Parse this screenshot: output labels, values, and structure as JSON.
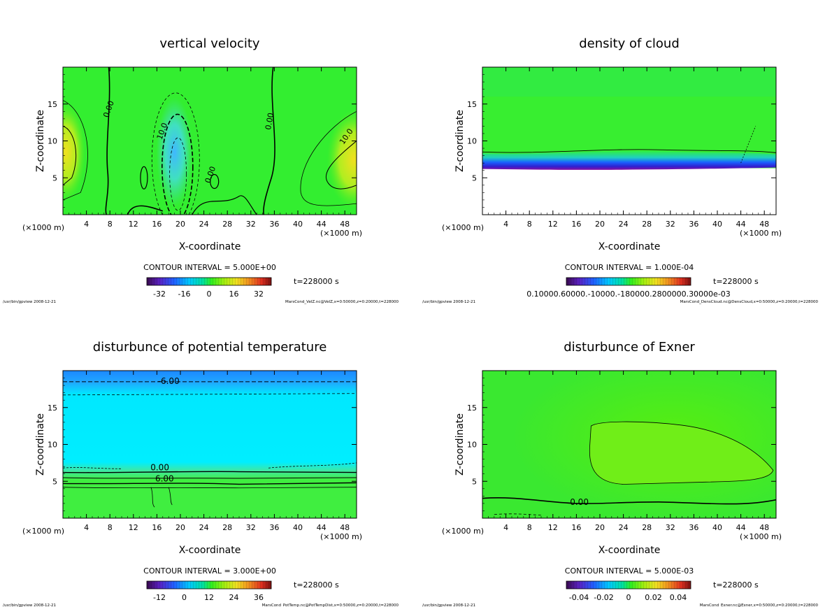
{
  "chart_data": [
    {
      "type": "heatmap",
      "title": "vertical velocity",
      "xlabel": "X-coordinate",
      "ylabel": "Z-coordinate",
      "x_unit": "(×1000 m)",
      "x_ticks": [
        4,
        8,
        12,
        16,
        20,
        24,
        28,
        32,
        36,
        40,
        44,
        48
      ],
      "y_ticks": [
        5,
        10,
        15
      ],
      "xlim": [
        0,
        50
      ],
      "ylim": [
        0,
        20
      ],
      "contour_interval": "CONTOUR INTERVAL = 5.000E+00",
      "time_label": "t=228000 s",
      "colorbar_ticks": [
        "-32",
        "-16",
        "0",
        "16",
        "32"
      ],
      "contour_labels": [
        "0.00",
        "10.0",
        "0.00",
        "0.00",
        "10.0"
      ],
      "footer_left": "/usr/bin/gpview  2008-12-21",
      "footer_right": "MarsCond_VelZ.nc@VelZ,x=0:50000,z=0:20000,t=228000",
      "grid": false
    },
    {
      "type": "heatmap",
      "title": "density of cloud",
      "xlabel": "X-coordinate",
      "ylabel": "Z-coordinate",
      "x_unit": "(×1000 m)",
      "x_ticks": [
        4,
        8,
        12,
        16,
        20,
        24,
        28,
        32,
        36,
        40,
        44,
        48
      ],
      "y_ticks": [
        5,
        10,
        15
      ],
      "xlim": [
        0,
        50
      ],
      "ylim": [
        0,
        20
      ],
      "contour_interval": "CONTOUR INTERVAL = 1.000E-04",
      "time_label": "t=228000 s",
      "colorbar_ticks_overlapping": "0.10000.60000.-10000.-180000.2800000.30000e-03",
      "footer_left": "/usr/bin/gpview  2008-12-21",
      "footer_right": "MarsCond_DensCloud.nc@DensCloud,x=0:50000,z=0:20000,t=228000",
      "grid": false
    },
    {
      "type": "heatmap",
      "title": "disturbunce of potential temperature",
      "xlabel": "X-coordinate",
      "ylabel": "Z-coordinate",
      "x_unit": "(×1000 m)",
      "x_ticks": [
        4,
        8,
        12,
        16,
        20,
        24,
        28,
        32,
        36,
        40,
        44,
        48
      ],
      "y_ticks": [
        5,
        10,
        15
      ],
      "xlim": [
        0,
        50
      ],
      "ylim": [
        0,
        20
      ],
      "contour_interval": "CONTOUR INTERVAL = 3.000E+00",
      "time_label": "t=228000 s",
      "colorbar_ticks": [
        "-12",
        "0",
        "12",
        "24",
        "36"
      ],
      "contour_labels": [
        "-6.00",
        "0.00",
        "6.00"
      ],
      "footer_left": "/usr/bin/gpview  2008-12-21",
      "footer_right": "MarsCond_PotTemp.nc@PotTempDist,x=0:50000,z=0:20000,t=228000",
      "grid": false
    },
    {
      "type": "heatmap",
      "title": "disturbunce of Exner",
      "xlabel": "X-coordinate",
      "ylabel": "Z-coordinate",
      "x_unit": "(×1000 m)",
      "x_ticks": [
        4,
        8,
        12,
        16,
        20,
        24,
        28,
        32,
        36,
        40,
        44,
        48
      ],
      "y_ticks": [
        5,
        10,
        15
      ],
      "xlim": [
        0,
        50
      ],
      "ylim": [
        0,
        20
      ],
      "contour_interval": "CONTOUR INTERVAL = 5.000E-03",
      "time_label": "t=228000 s",
      "colorbar_ticks": [
        "-0.04",
        "-0.02",
        "0",
        "0.02",
        "0.04"
      ],
      "contour_labels": [
        "0.00"
      ],
      "footer_left": "/usr/bin/gpview  2008-12-21",
      "footer_right": "MarsCond_Exner.nc@Exner,x=0:50000,z=0:20000,t=228000",
      "grid": false
    }
  ],
  "colors": {
    "field_green": "#33ee22",
    "high_yellow": "#f0e020",
    "low_cyan": "#40c8ff",
    "cloud_blue": "#1a50ff",
    "cloud_purple": "#8a10a0",
    "pt_cyan": "#00eeff",
    "pt_blue": "#20a0ff",
    "exner_green": "#58ee10"
  }
}
